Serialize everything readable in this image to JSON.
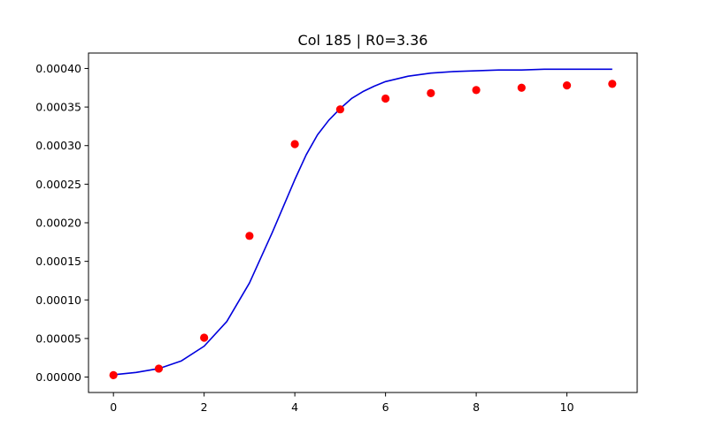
{
  "chart_data": {
    "type": "scatter",
    "title": "Col 185 | R0=3.36",
    "xlabel": "",
    "ylabel": "",
    "xlim": [
      -0.55,
      11.55
    ],
    "ylim": [
      -2e-05,
      0.00042
    ],
    "grid": false,
    "x_ticks": [
      0,
      2,
      4,
      6,
      8,
      10
    ],
    "x_tick_labels": [
      "0",
      "2",
      "4",
      "6",
      "8",
      "10"
    ],
    "y_ticks": [
      0,
      5e-05,
      0.0001,
      0.00015,
      0.0002,
      0.00025,
      0.0003,
      0.00035,
      0.0004
    ],
    "y_tick_labels": [
      "0.00000",
      "0.00005",
      "0.00010",
      "0.00015",
      "0.00020",
      "0.00025",
      "0.00030",
      "0.00035",
      "0.00040"
    ],
    "series": [
      {
        "kind": "points",
        "color": "#ff0000",
        "x": [
          0,
          1,
          2,
          3,
          4,
          5,
          6,
          7,
          8,
          9,
          10,
          11
        ],
        "y": [
          2.5e-06,
          1.1e-05,
          5.1e-05,
          0.000183,
          0.000302,
          0.000347,
          0.000361,
          0.000368,
          0.000372,
          0.000375,
          0.000378,
          0.00038
        ]
      },
      {
        "kind": "line",
        "color": "#0000dd",
        "x": [
          0,
          0.5,
          1,
          1.5,
          2,
          2.5,
          3,
          3.5,
          4,
          4.25,
          4.5,
          4.75,
          5,
          5.25,
          5.5,
          5.75,
          6,
          6.5,
          7,
          7.5,
          8,
          8.5,
          9,
          9.5,
          10,
          10.5,
          11
        ],
        "y": [
          3e-06,
          6e-06,
          1.1e-05,
          2.1e-05,
          4e-05,
          7.2e-05,
          0.000122,
          0.000187,
          0.000256,
          0.000288,
          0.000314,
          0.000333,
          0.000348,
          0.000361,
          0.00037,
          0.000377,
          0.000383,
          0.00039,
          0.000394,
          0.000396,
          0.000397,
          0.000398,
          0.000398,
          0.000399,
          0.000399,
          0.000399,
          0.000399
        ]
      }
    ]
  }
}
